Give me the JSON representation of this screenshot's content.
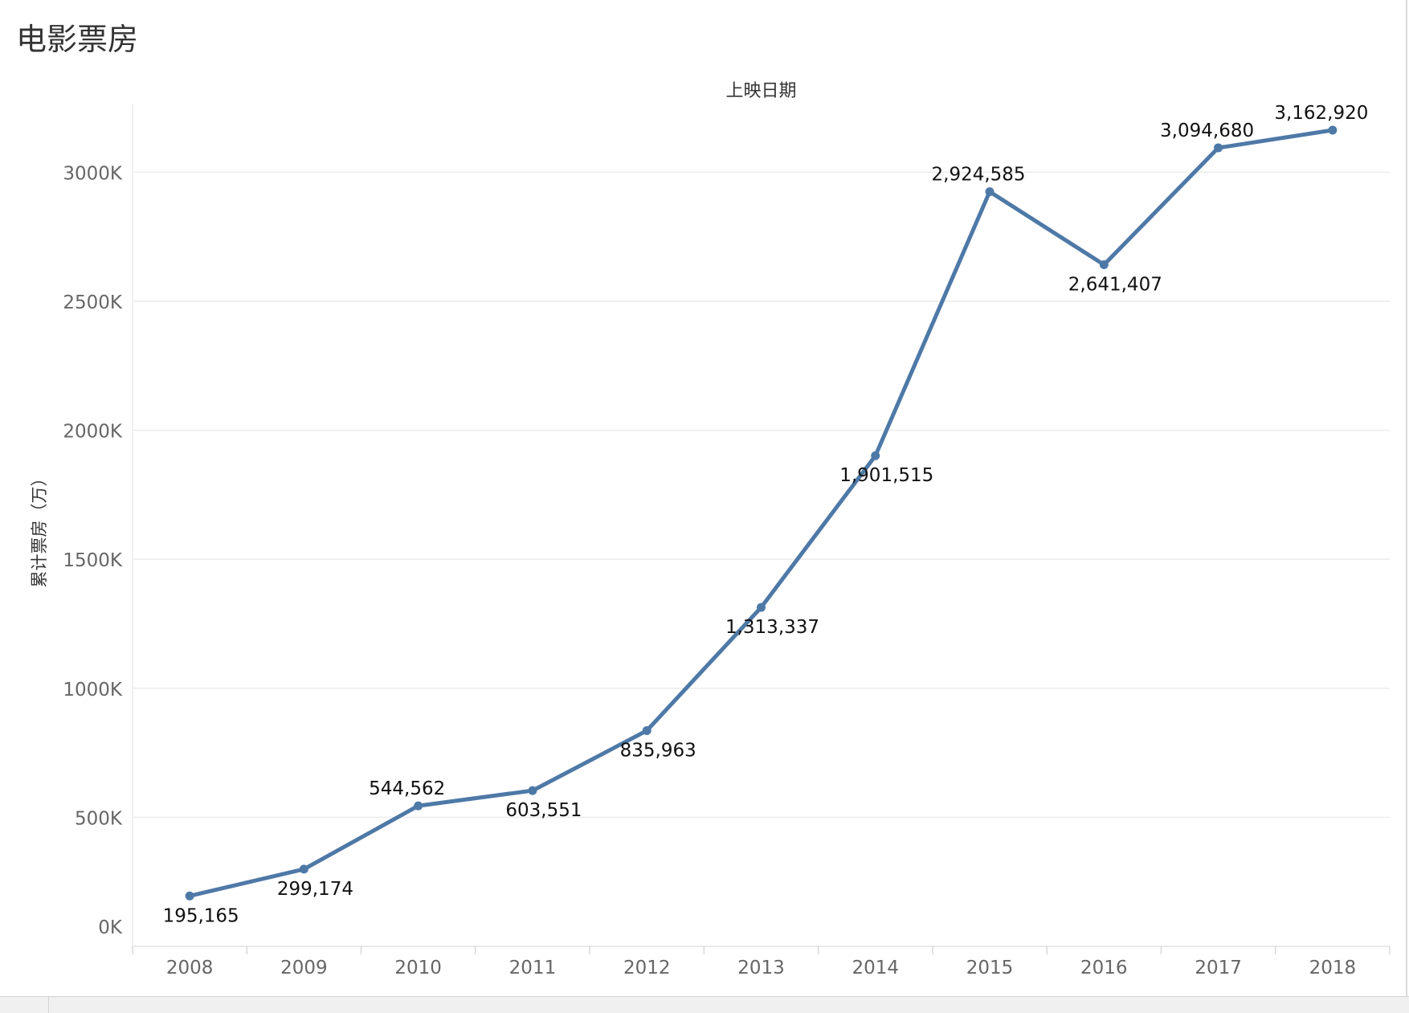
{
  "sheet": {
    "title": "电影票房"
  },
  "colors": {
    "line": "#4e79a7",
    "grid": "#ececec",
    "tick_text": "#666666",
    "label_text": "#111111",
    "header_text": "#333333"
  },
  "chart_data": {
    "type": "line",
    "column_header": "上映日期",
    "ylabel": "累计票房（万）",
    "x": [
      "2008",
      "2009",
      "2010",
      "2011",
      "2012",
      "2013",
      "2014",
      "2015",
      "2016",
      "2017",
      "2018"
    ],
    "series": [
      {
        "values": [
          195165,
          299174,
          544562,
          603551,
          835963,
          1313337,
          1901515,
          2924585,
          2641407,
          3094680,
          3162920
        ],
        "data_labels": [
          "195,165",
          "299,174",
          "544,562",
          "603,551",
          "835,963",
          "1,313,337",
          "1,901,515",
          "2,924,585",
          "2,641,407",
          "3,094,680",
          "3,162,920"
        ],
        "label_positions": [
          "below",
          "below",
          "above",
          "below",
          "below",
          "below",
          "below",
          "above",
          "below",
          "above",
          "above"
        ]
      }
    ],
    "ylim": [
      0,
      3300000
    ],
    "yticks": [
      0,
      500000,
      1000000,
      1500000,
      2000000,
      2500000,
      3000000
    ],
    "ytick_labels": [
      "0K",
      "500K",
      "1000K",
      "1500K",
      "2000K",
      "2500K",
      "3000K"
    ],
    "grid": true,
    "legend": "none",
    "markers": true
  }
}
